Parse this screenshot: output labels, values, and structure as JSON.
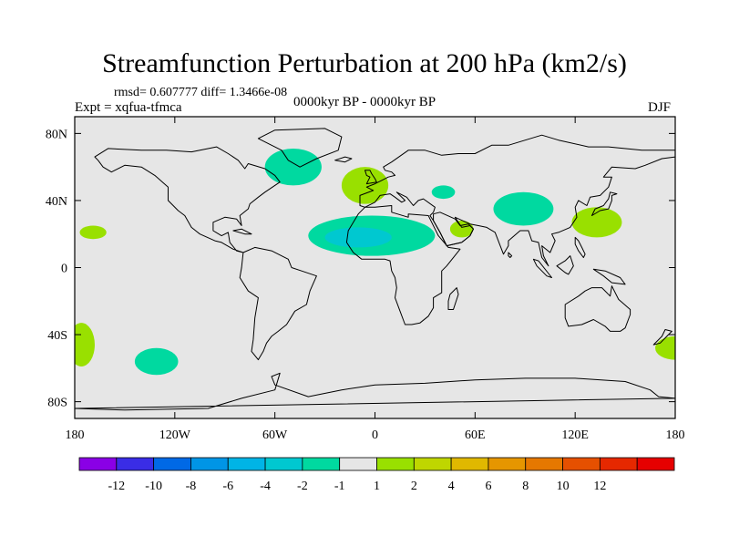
{
  "title": "Streamfunction Perturbation at 200 hPa (km2/s)",
  "stats": "rmsd= 0.607777  diff= 1.3466e-08",
  "experiment": "Expt = xqfua-tfmca",
  "period": "0000kyr BP - 0000kyr BP",
  "season": "DJF",
  "colors": {
    "ocean_land_bg": "#e6e6e6",
    "coastline": "#000000",
    "frame": "#000000"
  },
  "map": {
    "projection": "cylindrical-equidistant",
    "lon_range": [
      -180,
      180
    ],
    "lat_range": [
      -90,
      90
    ],
    "lat_ticks": [
      {
        "value": 80,
        "label": "80N"
      },
      {
        "value": 40,
        "label": "40N"
      },
      {
        "value": 0,
        "label": "0"
      },
      {
        "value": -40,
        "label": "40S"
      },
      {
        "value": -80,
        "label": "80S"
      }
    ],
    "lon_ticks": [
      {
        "value": -180,
        "label": "180"
      },
      {
        "value": -120,
        "label": "120W"
      },
      {
        "value": -60,
        "label": "60W"
      },
      {
        "value": 0,
        "label": "0"
      },
      {
        "value": 60,
        "label": "60E"
      },
      {
        "value": 120,
        "label": "120E"
      },
      {
        "value": 180,
        "label": "180"
      }
    ],
    "anomalies": [
      {
        "name": "north-atlantic-negative",
        "lon": -49,
        "lat": 60,
        "rlon": 17,
        "rlat": 11,
        "color": "#00d9a0"
      },
      {
        "name": "europe-positive",
        "lon": -6,
        "lat": 49,
        "rlon": 14,
        "rlat": 11,
        "color": "#99e000"
      },
      {
        "name": "black-sea-negative",
        "lon": 41,
        "lat": 45,
        "rlon": 7,
        "rlat": 4,
        "color": "#00d9a0"
      },
      {
        "name": "sahara-negative-outer",
        "lon": -2,
        "lat": 19,
        "rlon": 38,
        "rlat": 12,
        "color": "#00d9a0"
      },
      {
        "name": "sahara-negative-core",
        "lon": -10,
        "lat": 18,
        "rlon": 20,
        "rlat": 6,
        "color": "#00c8d0"
      },
      {
        "name": "arabia-positive",
        "lon": 52,
        "lat": 23,
        "rlon": 7,
        "rlat": 5,
        "color": "#99e000"
      },
      {
        "name": "tibet-negative",
        "lon": 89,
        "lat": 35,
        "rlon": 18,
        "rlat": 10,
        "color": "#00d9a0"
      },
      {
        "name": "west-pacific-positive",
        "lon": 133,
        "lat": 27,
        "rlon": 15,
        "rlat": 9,
        "color": "#99e000"
      },
      {
        "name": "north-pacific-positive",
        "lon": -169,
        "lat": 21,
        "rlon": 8,
        "rlat": 4,
        "color": "#99e000"
      },
      {
        "name": "south-pacific-positive-west",
        "lon": -176,
        "lat": -46,
        "rlon": 8,
        "rlat": 13,
        "color": "#99e000"
      },
      {
        "name": "south-pacific-negative",
        "lon": -131,
        "lat": -56,
        "rlon": 13,
        "rlat": 8,
        "color": "#00d9a0"
      },
      {
        "name": "south-pacific-positive-east",
        "lon": 180,
        "lat": -48,
        "rlon": 12,
        "rlat": 7,
        "color": "#99e000"
      }
    ]
  },
  "colorbar": {
    "colors": [
      "#8a00e6",
      "#3a2de6",
      "#0069e6",
      "#0095e6",
      "#00b4e6",
      "#00c8d0",
      "#00d9a0",
      "#e6e6e6",
      "#99e000",
      "#bfd600",
      "#e0b800",
      "#e69600",
      "#e67800",
      "#e65000",
      "#e62800",
      "#e60000"
    ],
    "labels": [
      "-12",
      "-10",
      "-8",
      "-6",
      "-4",
      "-2",
      "-1",
      "1",
      "2",
      "4",
      "6",
      "8",
      "10",
      "12"
    ]
  },
  "continents": [
    {
      "name": "north-america",
      "points": [
        [
          -168,
          66
        ],
        [
          -160,
          71
        ],
        [
          -140,
          70
        ],
        [
          -125,
          70
        ],
        [
          -110,
          69
        ],
        [
          -95,
          72
        ],
        [
          -88,
          68
        ],
        [
          -82,
          64
        ],
        [
          -78,
          59
        ],
        [
          -76,
          62
        ],
        [
          -66,
          59
        ],
        [
          -60,
          55
        ],
        [
          -57,
          51
        ],
        [
          -66,
          45
        ],
        [
          -70,
          42
        ],
        [
          -75,
          38
        ],
        [
          -76,
          35
        ],
        [
          -81,
          31
        ],
        [
          -80,
          25
        ],
        [
          -83,
          29
        ],
        [
          -90,
          30
        ],
        [
          -97,
          27
        ],
        [
          -97,
          22
        ],
        [
          -92,
          19
        ],
        [
          -88,
          21
        ],
        [
          -87,
          15
        ],
        [
          -83,
          10
        ],
        [
          -79,
          9
        ],
        [
          -85,
          11
        ],
        [
          -92,
          15
        ],
        [
          -96,
          16
        ],
        [
          -105,
          20
        ],
        [
          -110,
          24
        ],
        [
          -114,
          31
        ],
        [
          -118,
          34
        ],
        [
          -124,
          40
        ],
        [
          -124,
          48
        ],
        [
          -132,
          55
        ],
        [
          -140,
          60
        ],
        [
          -150,
          61
        ],
        [
          -158,
          57
        ],
        [
          -163,
          60
        ],
        [
          -166,
          64
        ]
      ]
    },
    {
      "name": "greenland",
      "points": [
        [
          -45,
          60
        ],
        [
          -52,
          64
        ],
        [
          -56,
          70
        ],
        [
          -70,
          77
        ],
        [
          -60,
          82
        ],
        [
          -30,
          83
        ],
        [
          -20,
          78
        ],
        [
          -22,
          70
        ],
        [
          -35,
          65
        ]
      ]
    },
    {
      "name": "south-america",
      "points": [
        [
          -79,
          9
        ],
        [
          -72,
          12
        ],
        [
          -62,
          10
        ],
        [
          -52,
          5
        ],
        [
          -50,
          0
        ],
        [
          -44,
          -2
        ],
        [
          -35,
          -5
        ],
        [
          -39,
          -14
        ],
        [
          -41,
          -22
        ],
        [
          -48,
          -26
        ],
        [
          -53,
          -34
        ],
        [
          -58,
          -38
        ],
        [
          -62,
          -41
        ],
        [
          -65,
          -45
        ],
        [
          -67,
          -50
        ],
        [
          -70,
          -55
        ],
        [
          -74,
          -50
        ],
        [
          -73,
          -43
        ],
        [
          -72,
          -30
        ],
        [
          -70,
          -18
        ],
        [
          -76,
          -14
        ],
        [
          -81,
          -6
        ],
        [
          -80,
          0
        ]
      ]
    },
    {
      "name": "eurasia",
      "points": [
        [
          -9,
          43
        ],
        [
          -9,
          37
        ],
        [
          -6,
          36
        ],
        [
          0,
          39
        ],
        [
          3,
          43
        ],
        [
          9,
          44
        ],
        [
          12,
          42
        ],
        [
          16,
          39
        ],
        [
          18,
          40
        ],
        [
          13,
          45
        ],
        [
          19,
          42
        ],
        [
          23,
          37
        ],
        [
          26,
          40
        ],
        [
          29,
          41
        ],
        [
          36,
          36
        ],
        [
          35,
          33
        ],
        [
          33,
          31
        ],
        [
          35,
          28
        ],
        [
          39,
          21
        ],
        [
          43,
          13
        ],
        [
          52,
          15
        ],
        [
          57,
          19
        ],
        [
          59,
          23
        ],
        [
          57,
          25
        ],
        [
          52,
          24
        ],
        [
          48,
          30
        ],
        [
          57,
          26
        ],
        [
          62,
          25
        ],
        [
          67,
          24
        ],
        [
          72,
          21
        ],
        [
          77,
          8
        ],
        [
          80,
          13
        ],
        [
          80,
          16
        ],
        [
          87,
          22
        ],
        [
          92,
          22
        ],
        [
          94,
          16
        ],
        [
          98,
          15
        ],
        [
          100,
          6
        ],
        [
          104,
          1
        ],
        [
          101,
          7
        ],
        [
          100,
          13
        ],
        [
          105,
          9
        ],
        [
          108,
          16
        ],
        [
          106,
          20
        ],
        [
          110,
          21
        ],
        [
          117,
          24
        ],
        [
          121,
          30
        ],
        [
          120,
          36
        ],
        [
          122,
          40
        ],
        [
          127,
          37
        ],
        [
          129,
          42
        ],
        [
          135,
          43
        ],
        [
          140,
          48
        ],
        [
          142,
          54
        ],
        [
          137,
          54
        ],
        [
          142,
          60
        ],
        [
          156,
          59
        ],
        [
          162,
          61
        ],
        [
          172,
          65
        ],
        [
          180,
          66
        ],
        [
          180,
          70
        ],
        [
          170,
          70
        ],
        [
          160,
          70
        ],
        [
          140,
          72
        ],
        [
          128,
          72
        ],
        [
          110,
          76
        ],
        [
          100,
          79
        ],
        [
          80,
          73
        ],
        [
          70,
          73
        ],
        [
          60,
          68
        ],
        [
          50,
          68
        ],
        [
          40,
          67
        ],
        [
          30,
          70
        ],
        [
          20,
          70
        ],
        [
          10,
          63
        ],
        [
          5,
          60
        ],
        [
          6,
          58
        ],
        [
          10,
          57
        ],
        [
          12,
          55
        ],
        [
          8,
          54
        ],
        [
          4,
          52
        ],
        [
          0,
          50
        ],
        [
          -5,
          48
        ],
        [
          -1,
          46
        ]
      ]
    },
    {
      "name": "africa",
      "points": [
        [
          -6,
          36
        ],
        [
          -10,
          32
        ],
        [
          -16,
          22
        ],
        [
          -17,
          15
        ],
        [
          -13,
          9
        ],
        [
          -8,
          5
        ],
        [
          0,
          5
        ],
        [
          6,
          5
        ],
        [
          9,
          4
        ],
        [
          10,
          -2
        ],
        [
          12,
          -6
        ],
        [
          13,
          -12
        ],
        [
          12,
          -18
        ],
        [
          15,
          -26
        ],
        [
          18,
          -34
        ],
        [
          22,
          -34
        ],
        [
          27,
          -33
        ],
        [
          32,
          -29
        ],
        [
          35,
          -24
        ],
        [
          35,
          -18
        ],
        [
          40,
          -15
        ],
        [
          40,
          -8
        ],
        [
          40,
          -2
        ],
        [
          43,
          1
        ],
        [
          51,
          11
        ],
        [
          44,
          12
        ],
        [
          38,
          19
        ],
        [
          33,
          29
        ],
        [
          32,
          31
        ],
        [
          20,
          32
        ],
        [
          20,
          30
        ],
        [
          10,
          33
        ],
        [
          10,
          37
        ],
        [
          0,
          36
        ]
      ]
    },
    {
      "name": "arabia",
      "points": [
        [
          35,
          28
        ],
        [
          39,
          21
        ],
        [
          43,
          13
        ],
        [
          52,
          15
        ],
        [
          57,
          19
        ],
        [
          59,
          23
        ],
        [
          56,
          26
        ],
        [
          51,
          25
        ],
        [
          48,
          29
        ],
        [
          39,
          33
        ],
        [
          35,
          32
        ]
      ]
    },
    {
      "name": "australia",
      "points": [
        [
          114,
          -22
        ],
        [
          114,
          -30
        ],
        [
          116,
          -35
        ],
        [
          124,
          -34
        ],
        [
          131,
          -31
        ],
        [
          138,
          -35
        ],
        [
          141,
          -38
        ],
        [
          147,
          -38
        ],
        [
          150,
          -36
        ],
        [
          153,
          -28
        ],
        [
          153,
          -25
        ],
        [
          146,
          -19
        ],
        [
          142,
          -11
        ],
        [
          141,
          -17
        ],
        [
          136,
          -12
        ],
        [
          130,
          -12
        ],
        [
          126,
          -14
        ],
        [
          122,
          -17
        ]
      ]
    },
    {
      "name": "antarctica",
      "points": [
        [
          -180,
          -84
        ],
        [
          -150,
          -85
        ],
        [
          -100,
          -84
        ],
        [
          -80,
          -78
        ],
        [
          -60,
          -73
        ],
        [
          -57,
          -63
        ],
        [
          -62,
          -65
        ],
        [
          -60,
          -70
        ],
        [
          -40,
          -77
        ],
        [
          -20,
          -73
        ],
        [
          0,
          -70
        ],
        [
          30,
          -69
        ],
        [
          60,
          -67
        ],
        [
          90,
          -66
        ],
        [
          120,
          -66
        ],
        [
          150,
          -68
        ],
        [
          165,
          -73
        ],
        [
          170,
          -77
        ],
        [
          180,
          -78
        ]
      ]
    },
    {
      "name": "madagascar",
      "points": [
        [
          44,
          -25
        ],
        [
          47,
          -25
        ],
        [
          50,
          -16
        ],
        [
          49,
          -12
        ],
        [
          45,
          -16
        ],
        [
          44,
          -20
        ]
      ]
    },
    {
      "name": "great-britain",
      "points": [
        [
          -5,
          50
        ],
        [
          1,
          51
        ],
        [
          0,
          53
        ],
        [
          -2,
          56
        ],
        [
          -3,
          58
        ],
        [
          -6,
          58
        ],
        [
          -5,
          55
        ],
        [
          -3,
          54
        ]
      ]
    },
    {
      "name": "japan",
      "points": [
        [
          130,
          31
        ],
        [
          135,
          34
        ],
        [
          140,
          35
        ],
        [
          142,
          40
        ],
        [
          142,
          43
        ],
        [
          145,
          44
        ],
        [
          141,
          45
        ],
        [
          140,
          41
        ],
        [
          137,
          37
        ],
        [
          132,
          35
        ]
      ]
    },
    {
      "name": "borneo",
      "points": [
        [
          109,
          1
        ],
        [
          114,
          -3
        ],
        [
          116,
          -4
        ],
        [
          119,
          1
        ],
        [
          117,
          7
        ],
        [
          114,
          4
        ]
      ]
    },
    {
      "name": "sumatra",
      "points": [
        [
          95,
          5
        ],
        [
          98,
          4
        ],
        [
          106,
          -6
        ],
        [
          103,
          -5
        ],
        [
          97,
          1
        ]
      ]
    },
    {
      "name": "new-guinea",
      "points": [
        [
          131,
          -1
        ],
        [
          138,
          -2
        ],
        [
          147,
          -6
        ],
        [
          150,
          -10
        ],
        [
          142,
          -9
        ],
        [
          137,
          -5
        ]
      ]
    },
    {
      "name": "new-zealand",
      "points": [
        [
          167,
          -46
        ],
        [
          172,
          -41
        ],
        [
          174,
          -37
        ],
        [
          178,
          -38
        ],
        [
          175,
          -41
        ],
        [
          171,
          -45
        ]
      ]
    },
    {
      "name": "iceland",
      "points": [
        [
          -24,
          64
        ],
        [
          -18,
          66
        ],
        [
          -14,
          65
        ],
        [
          -18,
          63
        ]
      ]
    },
    {
      "name": "cuba",
      "points": [
        [
          -85,
          22
        ],
        [
          -80,
          23
        ],
        [
          -74,
          20
        ],
        [
          -78,
          20
        ]
      ]
    },
    {
      "name": "sri-lanka",
      "points": [
        [
          80,
          9
        ],
        [
          82,
          7
        ],
        [
          81,
          6
        ],
        [
          80,
          7
        ]
      ]
    },
    {
      "name": "philippines",
      "points": [
        [
          120,
          18
        ],
        [
          122,
          16
        ],
        [
          124,
          12
        ],
        [
          126,
          8
        ],
        [
          125,
          6
        ],
        [
          122,
          10
        ],
        [
          120,
          14
        ]
      ]
    }
  ]
}
